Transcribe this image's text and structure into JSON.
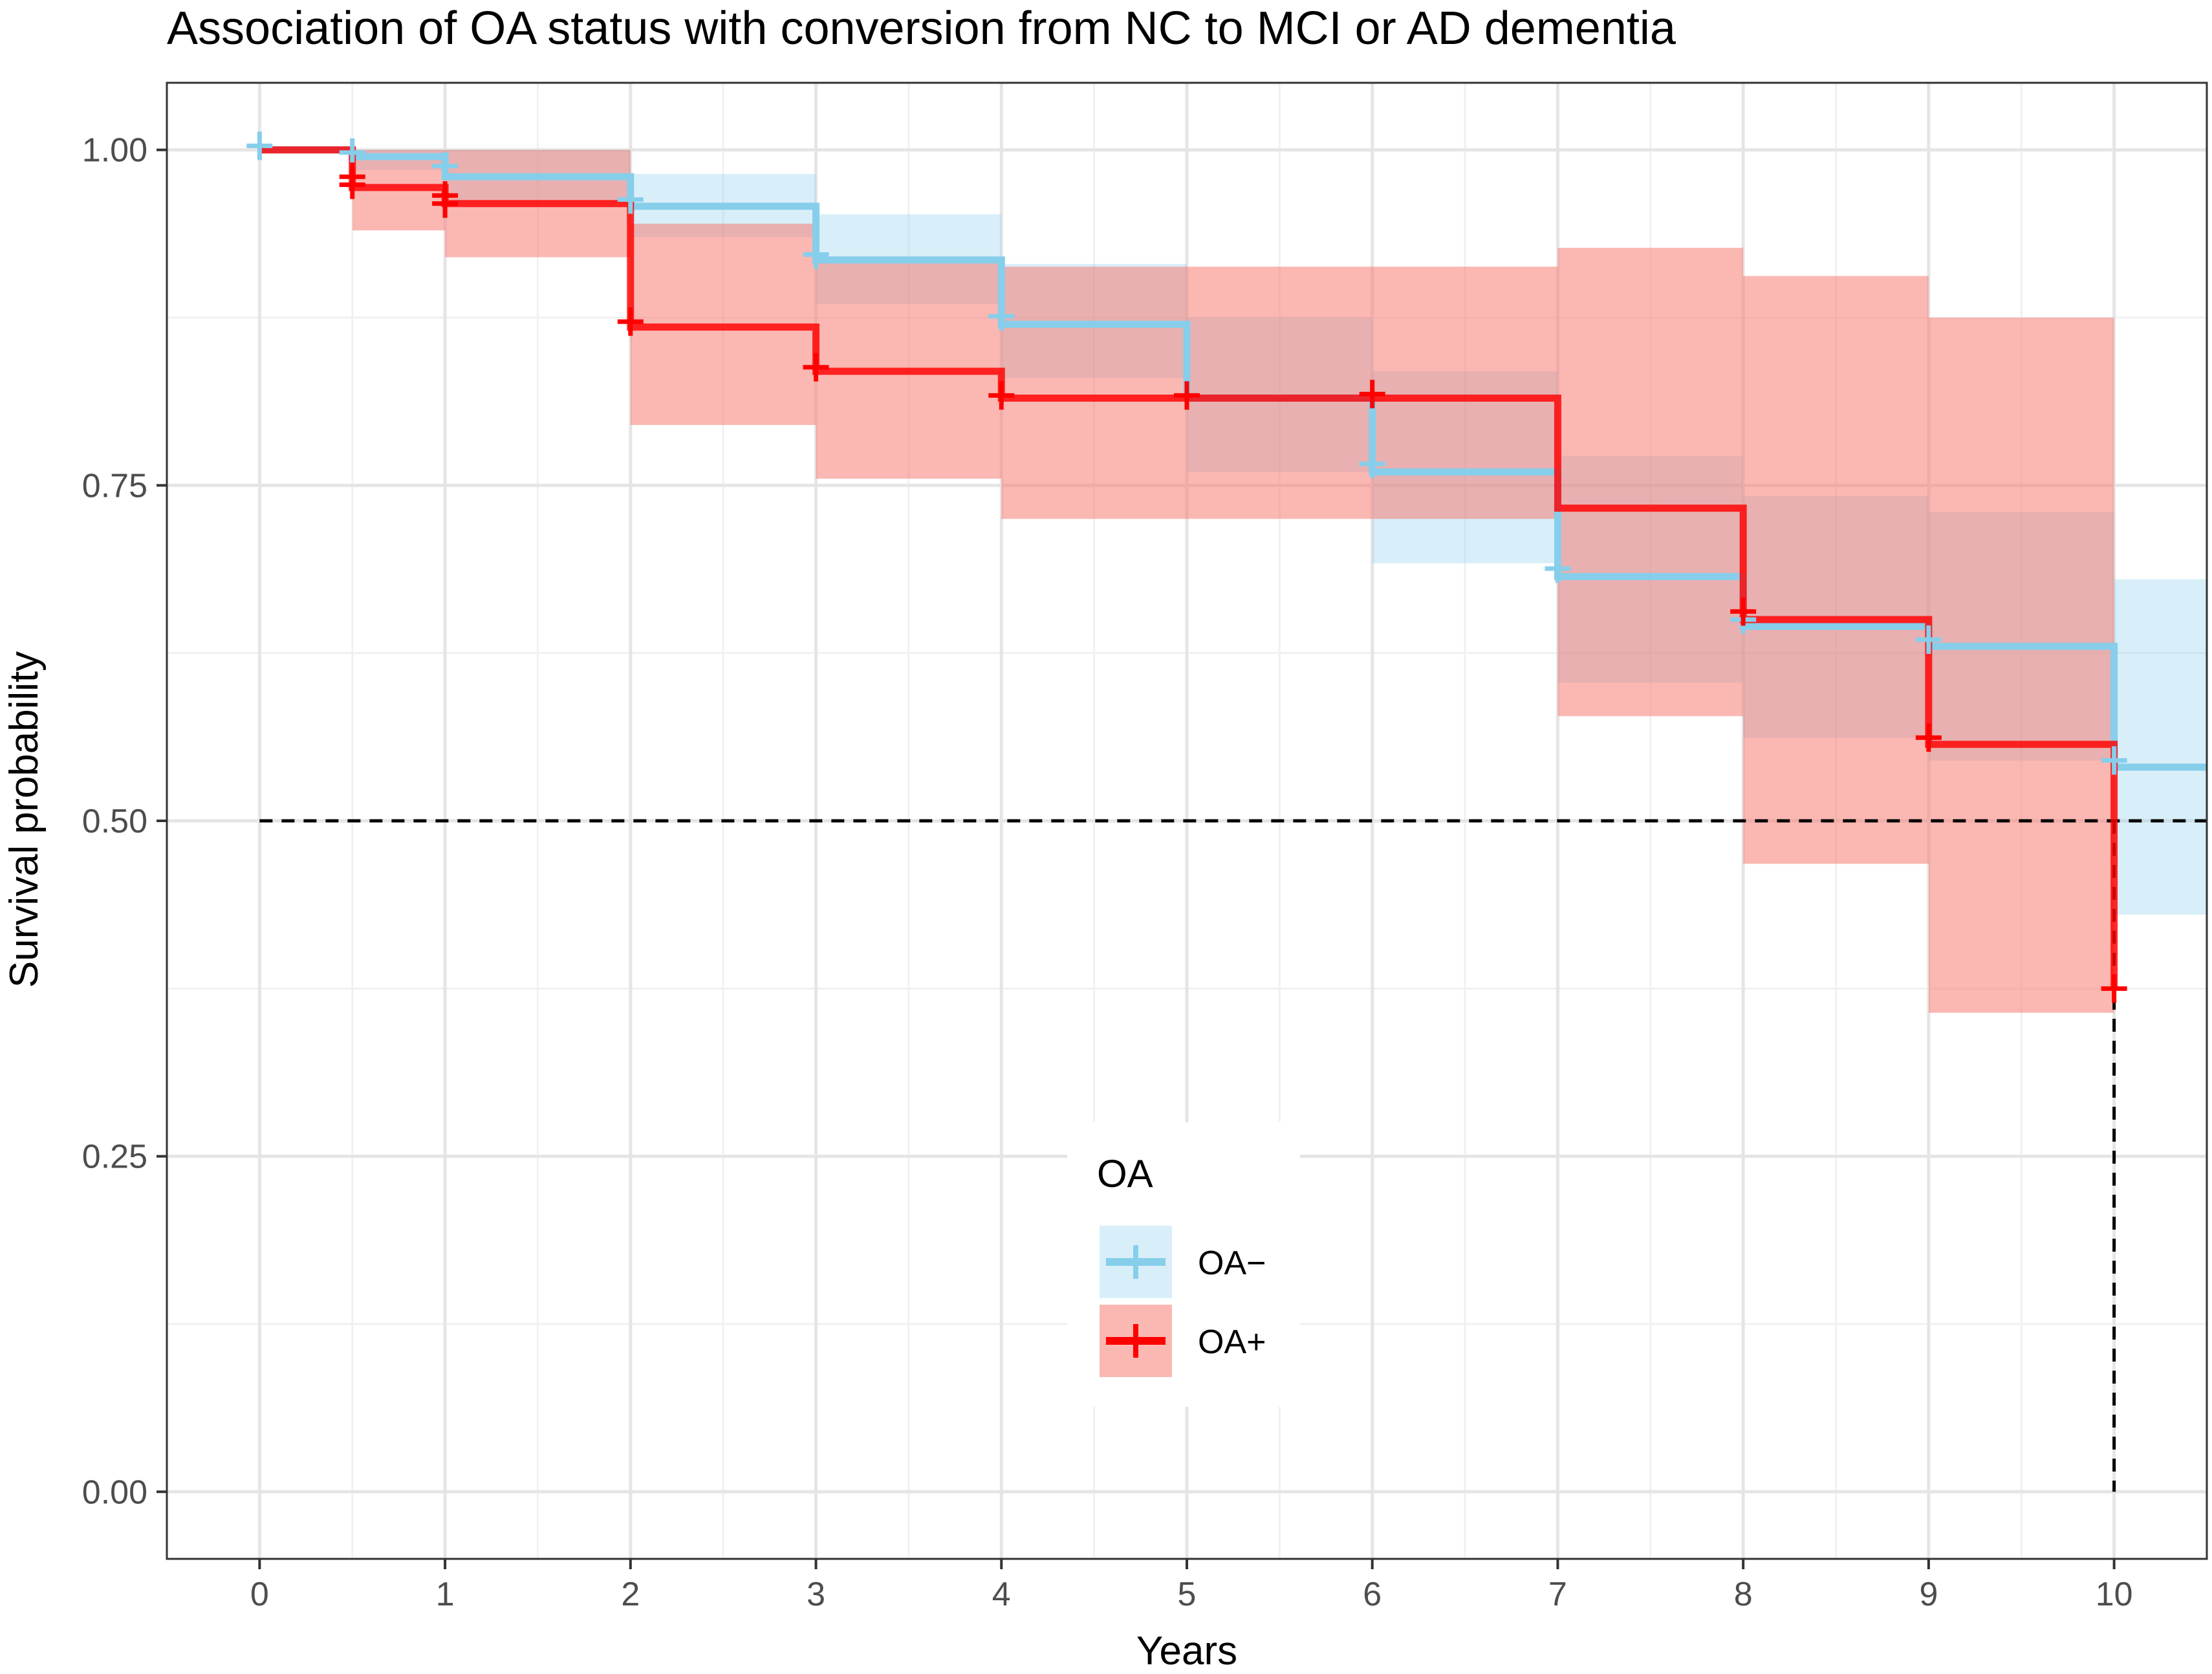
{
  "chart_data": {
    "type": "line",
    "subtype": "kaplan-meier step with confidence bands",
    "title": "Association of OA status with conversion from NC to MCI or AD dementia",
    "xlabel": "Years",
    "ylabel": "Survival probability",
    "xlim": [
      -0.5,
      10.5
    ],
    "ylim": [
      -0.05,
      1.05
    ],
    "x_ticks": [
      0,
      1,
      2,
      3,
      4,
      5,
      6,
      7,
      8,
      9,
      10
    ],
    "x_tick_labels": [
      "0",
      "1",
      "2",
      "3",
      "4",
      "5",
      "6",
      "7",
      "8",
      "9",
      "10"
    ],
    "y_ticks": [
      0,
      0.25,
      0.5,
      0.75,
      1.0
    ],
    "y_tick_labels": [
      "0.00",
      "0.25",
      "0.50",
      "0.75",
      "1.00"
    ],
    "grid": true,
    "legend": {
      "title": "OA",
      "position": "bottom-center inside",
      "entries": [
        "OA−",
        "OA+"
      ]
    },
    "median_line": {
      "y": 0.5,
      "x_end": 10,
      "style": "dashed"
    },
    "series": [
      {
        "name": "OA−",
        "color": "#87CEEB",
        "fill": "#87CEEB",
        "steps": [
          {
            "x0": 0,
            "x1": 0.5,
            "y": 1.0,
            "lower": 1.0,
            "upper": 1.0
          },
          {
            "x0": 0.5,
            "x1": 1,
            "y": 0.995,
            "lower": 0.985,
            "upper": 1.0
          },
          {
            "x0": 1,
            "x1": 2,
            "y": 0.98,
            "lower": 0.96,
            "upper": 1.0
          },
          {
            "x0": 2,
            "x1": 3,
            "y": 0.958,
            "lower": 0.935,
            "upper": 0.982
          },
          {
            "x0": 3,
            "x1": 4,
            "y": 0.918,
            "lower": 0.885,
            "upper": 0.952
          },
          {
            "x0": 4,
            "x1": 5,
            "y": 0.87,
            "lower": 0.83,
            "upper": 0.915
          },
          {
            "x0": 5,
            "x1": 6,
            "y": 0.815,
            "lower": 0.76,
            "upper": 0.875
          },
          {
            "x0": 6,
            "x1": 7,
            "y": 0.76,
            "lower": 0.692,
            "upper": 0.835
          },
          {
            "x0": 7,
            "x1": 8,
            "y": 0.682,
            "lower": 0.603,
            "upper": 0.772
          },
          {
            "x0": 8,
            "x1": 9,
            "y": 0.645,
            "lower": 0.562,
            "upper": 0.742
          },
          {
            "x0": 9,
            "x1": 10,
            "y": 0.63,
            "lower": 0.545,
            "upper": 0.73
          },
          {
            "x0": 10,
            "x1": 10.5,
            "y": 0.54,
            "lower": 0.43,
            "upper": 0.68
          }
        ],
        "censor_points": [
          {
            "x": 0,
            "y": 1.003
          },
          {
            "x": 0.5,
            "y": 0.998
          },
          {
            "x": 1,
            "y": 0.988
          },
          {
            "x": 2,
            "y": 0.963
          },
          {
            "x": 3,
            "y": 0.922
          },
          {
            "x": 4,
            "y": 0.876
          },
          {
            "x": 6,
            "y": 0.766
          },
          {
            "x": 7,
            "y": 0.688
          },
          {
            "x": 8,
            "y": 0.65
          },
          {
            "x": 9,
            "y": 0.635
          },
          {
            "x": 10,
            "y": 0.545
          }
        ]
      },
      {
        "name": "OA+",
        "color": "#FF0000",
        "fill": "#F8766D",
        "steps": [
          {
            "x0": 0,
            "x1": 0.5,
            "y": 1.0,
            "lower": 1.0,
            "upper": 1.0
          },
          {
            "x0": 0.5,
            "x1": 1,
            "y": 0.972,
            "lower": 0.94,
            "upper": 1.0
          },
          {
            "x0": 1,
            "x1": 2,
            "y": 0.96,
            "lower": 0.92,
            "upper": 1.0
          },
          {
            "x0": 2,
            "x1": 3,
            "y": 0.868,
            "lower": 0.795,
            "upper": 0.945
          },
          {
            "x0": 3,
            "x1": 4,
            "y": 0.835,
            "lower": 0.755,
            "upper": 0.92
          },
          {
            "x0": 4,
            "x1": 6,
            "y": 0.815,
            "lower": 0.725,
            "upper": 0.913
          },
          {
            "x0": 6,
            "x1": 7,
            "y": 0.815,
            "lower": 0.725,
            "upper": 0.913
          },
          {
            "x0": 7,
            "x1": 8,
            "y": 0.733,
            "lower": 0.578,
            "upper": 0.927
          },
          {
            "x0": 8,
            "x1": 9,
            "y": 0.65,
            "lower": 0.468,
            "upper": 0.906
          },
          {
            "x0": 9,
            "x1": 10,
            "y": 0.557,
            "lower": 0.357,
            "upper": 0.875
          }
        ],
        "drop_to": {
          "x": 10,
          "y": 0.375
        },
        "censor_points": [
          {
            "x": 0.5,
            "y": 0.98
          },
          {
            "x": 0.5,
            "y": 0.974
          },
          {
            "x": 1,
            "y": 0.966
          },
          {
            "x": 1,
            "y": 0.96
          },
          {
            "x": 2,
            "y": 0.872
          },
          {
            "x": 3,
            "y": 0.838
          },
          {
            "x": 4,
            "y": 0.817
          },
          {
            "x": 5,
            "y": 0.817
          },
          {
            "x": 6,
            "y": 0.818
          },
          {
            "x": 8,
            "y": 0.656
          },
          {
            "x": 9,
            "y": 0.562
          },
          {
            "x": 10,
            "y": 0.375
          }
        ]
      }
    ]
  }
}
